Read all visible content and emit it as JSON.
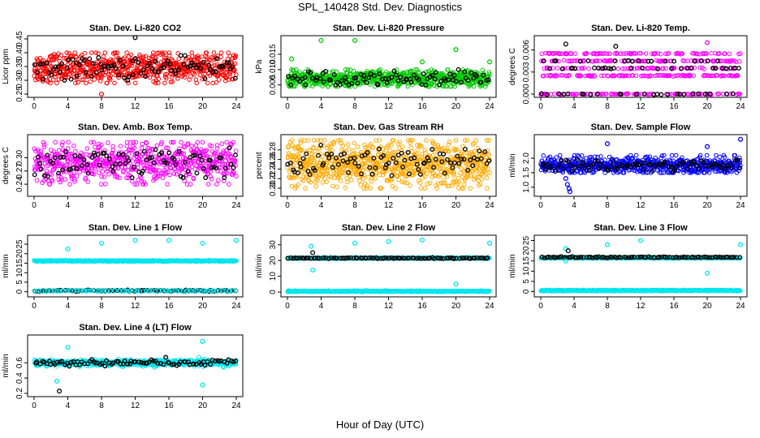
{
  "figure": {
    "title": "SPL_140428  Std. Dev. Diagnostics",
    "xlabel": "Hour of Day (UTC)"
  },
  "colors": {
    "red": "#ff0000",
    "green": "#00cc00",
    "magenta": "#ff00ff",
    "orange": "#ffaa00",
    "blue": "#0000ff",
    "cyan": "#00e5ee",
    "black": "#000000"
  },
  "chart_data": [
    {
      "type": "scatter",
      "title": "Stan. Dev. Li-820 CO2",
      "ylabel": "Licor ppm",
      "xlim": [
        0,
        24
      ],
      "xticks": [
        "0",
        "4",
        "8",
        "12",
        "16",
        "20",
        "24"
      ],
      "ylim": [
        0.25,
        0.45
      ],
      "yticks": [
        "0.25",
        "0.30",
        "0.35",
        "0.40",
        "0.45"
      ],
      "series": [
        {
          "color": "red",
          "x_range": [
            0,
            24
          ],
          "y_min": 0.29,
          "y_max": 0.4,
          "y_center": 0.345,
          "n": 650
        },
        {
          "color": "black",
          "x_range": [
            0,
            24
          ],
          "y_min": 0.3,
          "y_max": 0.39,
          "y_center": 0.345,
          "n": 90
        }
      ],
      "outliers": [
        {
          "x": 12,
          "y": 0.455,
          "color": "black"
        },
        {
          "x": 8,
          "y": 0.25,
          "color": "red"
        }
      ]
    },
    {
      "type": "scatter",
      "title": "Stan. Dev. Li-820 Pressure",
      "ylabel": "kPa",
      "xlim": [
        0,
        24
      ],
      "xticks": [
        "0",
        "4",
        "8",
        "12",
        "16",
        "20",
        "24"
      ],
      "ylim": [
        0.002,
        0.02
      ],
      "yticks": [
        "0.005",
        "0.010",
        "0.015"
      ],
      "series": [
        {
          "color": "green",
          "x_range": [
            0,
            24
          ],
          "y_min": 0.0045,
          "y_max": 0.01,
          "y_center": 0.007,
          "n": 700
        },
        {
          "color": "black",
          "x_range": [
            0,
            24
          ],
          "y_min": 0.005,
          "y_max": 0.01,
          "y_center": 0.0072,
          "n": 90
        }
      ],
      "outliers": [
        {
          "x": 4,
          "y": 0.0195,
          "color": "green"
        },
        {
          "x": 8,
          "y": 0.0195,
          "color": "green"
        },
        {
          "x": 20,
          "y": 0.0165,
          "color": "green"
        },
        {
          "x": 16,
          "y": 0.0125,
          "color": "green"
        },
        {
          "x": 0.5,
          "y": 0.0135,
          "color": "green"
        },
        {
          "x": 24,
          "y": 0.0125,
          "color": "green"
        }
      ]
    },
    {
      "type": "scatter",
      "title": "Stan. Dev. Li-820 Temp.",
      "ylabel": "degrees C",
      "xlim": [
        0,
        24
      ],
      "xticks": [
        "0",
        "4",
        "8",
        "12",
        "16",
        "20",
        "24"
      ],
      "ylim": [
        0,
        0.0075
      ],
      "yticks": [
        "0.000",
        "0.003",
        "0.006"
      ],
      "series": [
        {
          "color": "magenta",
          "x_range": [
            0,
            24
          ],
          "levels": [
            0.0,
            0.0025,
            0.0035,
            0.0045,
            0.0055
          ],
          "n": 500
        },
        {
          "color": "black",
          "x_range": [
            0,
            24
          ],
          "levels": [
            0.0,
            0.0035,
            0.0045
          ],
          "n": 70
        }
      ],
      "outliers": [
        {
          "x": 3,
          "y": 0.0068,
          "color": "black"
        },
        {
          "x": 9,
          "y": 0.0065,
          "color": "black"
        },
        {
          "x": 20,
          "y": 0.007,
          "color": "magenta"
        }
      ]
    },
    {
      "type": "scatter",
      "title": "Stan. Dev. Amb. Box Temp.",
      "ylabel": "degrees C",
      "xlim": [
        0,
        24
      ],
      "xticks": [
        "0",
        "4",
        "8",
        "12",
        "16",
        "20",
        "24"
      ],
      "ylim": [
        0.22,
        0.345
      ],
      "yticks": [
        "0.24",
        "0.27",
        "0.30"
      ],
      "series": [
        {
          "color": "magenta",
          "x_range": [
            0,
            24
          ],
          "y_min": 0.24,
          "y_max": 0.335,
          "y_center": 0.29,
          "n": 650
        },
        {
          "color": "black",
          "x_range": [
            0,
            24
          ],
          "y_min": 0.255,
          "y_max": 0.33,
          "y_center": 0.29,
          "n": 90
        }
      ],
      "outliers": []
    },
    {
      "type": "scatter",
      "title": "Stan. Dev. Gas Stream RH",
      "ylabel": "percent",
      "xlim": [
        0,
        24
      ],
      "xticks": [
        "0",
        "4",
        "8",
        "12",
        "16",
        "20",
        "24"
      ],
      "ylim": [
        0.19,
        0.305
      ],
      "yticks": [
        "0.20",
        "0.22",
        "0.24",
        "0.26",
        "0.28"
      ],
      "series": [
        {
          "color": "orange",
          "x_range": [
            0,
            24
          ],
          "y_min": 0.2,
          "y_max": 0.3,
          "y_center": 0.25,
          "n": 800
        },
        {
          "color": "black",
          "x_range": [
            0,
            24
          ],
          "y_min": 0.22,
          "y_max": 0.29,
          "y_center": 0.255,
          "n": 90
        }
      ],
      "outliers": []
    },
    {
      "type": "scatter",
      "title": "Stan. Dev. Sample Flow",
      "ylabel": "ml/min",
      "xlim": [
        0,
        24
      ],
      "xticks": [
        "0",
        "4",
        "8",
        "12",
        "16",
        "20",
        "24"
      ],
      "ylim": [
        0.8,
        2.7
      ],
      "yticks": [
        "1.0",
        "1.5",
        "2.0"
      ],
      "series": [
        {
          "color": "blue",
          "x_range": [
            0,
            24
          ],
          "y_min": 1.5,
          "y_max": 2.1,
          "y_center": 1.75,
          "n": 650
        },
        {
          "color": "black",
          "x_range": [
            0,
            24
          ],
          "y_min": 1.55,
          "y_max": 1.95,
          "y_center": 1.75,
          "n": 90
        }
      ],
      "outliers": [
        {
          "x": 3,
          "y": 1.3,
          "color": "blue"
        },
        {
          "x": 3.2,
          "y": 1.1,
          "color": "blue"
        },
        {
          "x": 3.4,
          "y": 0.95,
          "color": "blue"
        },
        {
          "x": 3.5,
          "y": 0.85,
          "color": "blue"
        },
        {
          "x": 24,
          "y": 2.65,
          "color": "blue"
        },
        {
          "x": 20,
          "y": 2.4,
          "color": "blue"
        },
        {
          "x": 8,
          "y": 2.5,
          "color": "blue"
        }
      ]
    },
    {
      "type": "scatter",
      "title": "Stan. Dev. Line 1 Flow",
      "ylabel": "ml/min",
      "xlim": [
        0,
        24
      ],
      "xticks": [
        "0",
        "4",
        "8",
        "12",
        "16",
        "20",
        "24"
      ],
      "ylim": [
        -1,
        28
      ],
      "yticks": [
        "0",
        "5",
        "10",
        "15",
        "20",
        "25"
      ],
      "series": [
        {
          "color": "cyan",
          "x_range": [
            0,
            24
          ],
          "levels": [
            16.2
          ],
          "n": 600
        },
        {
          "color": "black",
          "x_range": [
            0,
            24
          ],
          "levels": [
            0.5
          ],
          "n": 90
        },
        {
          "color": "cyan",
          "x_range": [
            0,
            24
          ],
          "levels": [
            0.5
          ],
          "n": 90
        }
      ],
      "outliers": [
        {
          "x": 4,
          "y": 22.5,
          "color": "cyan"
        },
        {
          "x": 8,
          "y": 25.5,
          "color": "cyan"
        },
        {
          "x": 12,
          "y": 27,
          "color": "cyan"
        },
        {
          "x": 16,
          "y": 27,
          "color": "cyan"
        },
        {
          "x": 20,
          "y": 25.5,
          "color": "cyan"
        },
        {
          "x": 24,
          "y": 27,
          "color": "cyan"
        }
      ]
    },
    {
      "type": "scatter",
      "title": "Stan. Dev. Line 2 Flow",
      "ylabel": "ml/min",
      "xlim": [
        0,
        24
      ],
      "xticks": [
        "0",
        "4",
        "8",
        "12",
        "16",
        "20",
        "24"
      ],
      "ylim": [
        -1,
        34
      ],
      "yticks": [
        "0",
        "10",
        "20",
        "30"
      ],
      "series": [
        {
          "color": "cyan",
          "x_range": [
            0,
            24
          ],
          "levels": [
            21.5
          ],
          "n": 600
        },
        {
          "color": "black",
          "x_range": [
            0,
            24
          ],
          "levels": [
            21.5
          ],
          "n": 90
        },
        {
          "color": "cyan",
          "x_range": [
            0,
            24
          ],
          "levels": [
            0.5
          ],
          "n": 600
        }
      ],
      "outliers": [
        {
          "x": 2.8,
          "y": 29,
          "color": "cyan"
        },
        {
          "x": 3,
          "y": 14,
          "color": "cyan"
        },
        {
          "x": 3,
          "y": 25,
          "color": "black"
        },
        {
          "x": 8,
          "y": 31,
          "color": "cyan"
        },
        {
          "x": 12,
          "y": 32,
          "color": "cyan"
        },
        {
          "x": 16,
          "y": 33,
          "color": "cyan"
        },
        {
          "x": 20,
          "y": 5,
          "color": "cyan"
        },
        {
          "x": 24,
          "y": 31,
          "color": "cyan"
        }
      ]
    },
    {
      "type": "scatter",
      "title": "Stan. Dev. Line 3 Flow",
      "ylabel": "ml/min",
      "xlim": [
        0,
        24
      ],
      "xticks": [
        "0",
        "4",
        "8",
        "12",
        "16",
        "20",
        "24"
      ],
      "ylim": [
        -1,
        26
      ],
      "yticks": [
        "0",
        "5",
        "10",
        "15",
        "20",
        "25"
      ],
      "series": [
        {
          "color": "cyan",
          "x_range": [
            0,
            24
          ],
          "levels": [
            16.5
          ],
          "n": 600
        },
        {
          "color": "black",
          "x_range": [
            0,
            24
          ],
          "levels": [
            16.8
          ],
          "n": 90
        },
        {
          "color": "cyan",
          "x_range": [
            0,
            24
          ],
          "levels": [
            0.5
          ],
          "n": 600
        }
      ],
      "outliers": [
        {
          "x": 3,
          "y": 21,
          "color": "cyan"
        },
        {
          "x": 3.3,
          "y": 20,
          "color": "black"
        },
        {
          "x": 3,
          "y": 15,
          "color": "cyan"
        },
        {
          "x": 8,
          "y": 23,
          "color": "cyan"
        },
        {
          "x": 12,
          "y": 25,
          "color": "cyan"
        },
        {
          "x": 20,
          "y": 9,
          "color": "cyan"
        },
        {
          "x": 24,
          "y": 23,
          "color": "cyan"
        }
      ]
    },
    {
      "type": "scatter",
      "title": "Stan. Dev. Line 4 (LT) Flow",
      "ylabel": "ml/min",
      "xlim": [
        0,
        24
      ],
      "xticks": [
        "0",
        "4",
        "8",
        "12",
        "16",
        "20",
        "24"
      ],
      "ylim": [
        0.2,
        0.92
      ],
      "yticks": [
        "0.2",
        "0.4",
        "0.6"
      ],
      "series": [
        {
          "color": "cyan",
          "x_range": [
            0,
            24
          ],
          "levels": [
            0.6
          ],
          "spread": 0.04,
          "n": 600
        },
        {
          "color": "black",
          "x_range": [
            0,
            24
          ],
          "levels": [
            0.6
          ],
          "spread": 0.04,
          "n": 90
        }
      ],
      "outliers": [
        {
          "x": 4,
          "y": 0.8,
          "color": "cyan"
        },
        {
          "x": 2.7,
          "y": 0.36,
          "color": "cyan"
        },
        {
          "x": 3,
          "y": 0.23,
          "color": "black"
        },
        {
          "x": 20,
          "y": 0.88,
          "color": "cyan"
        },
        {
          "x": 20,
          "y": 0.31,
          "color": "cyan"
        }
      ]
    }
  ]
}
